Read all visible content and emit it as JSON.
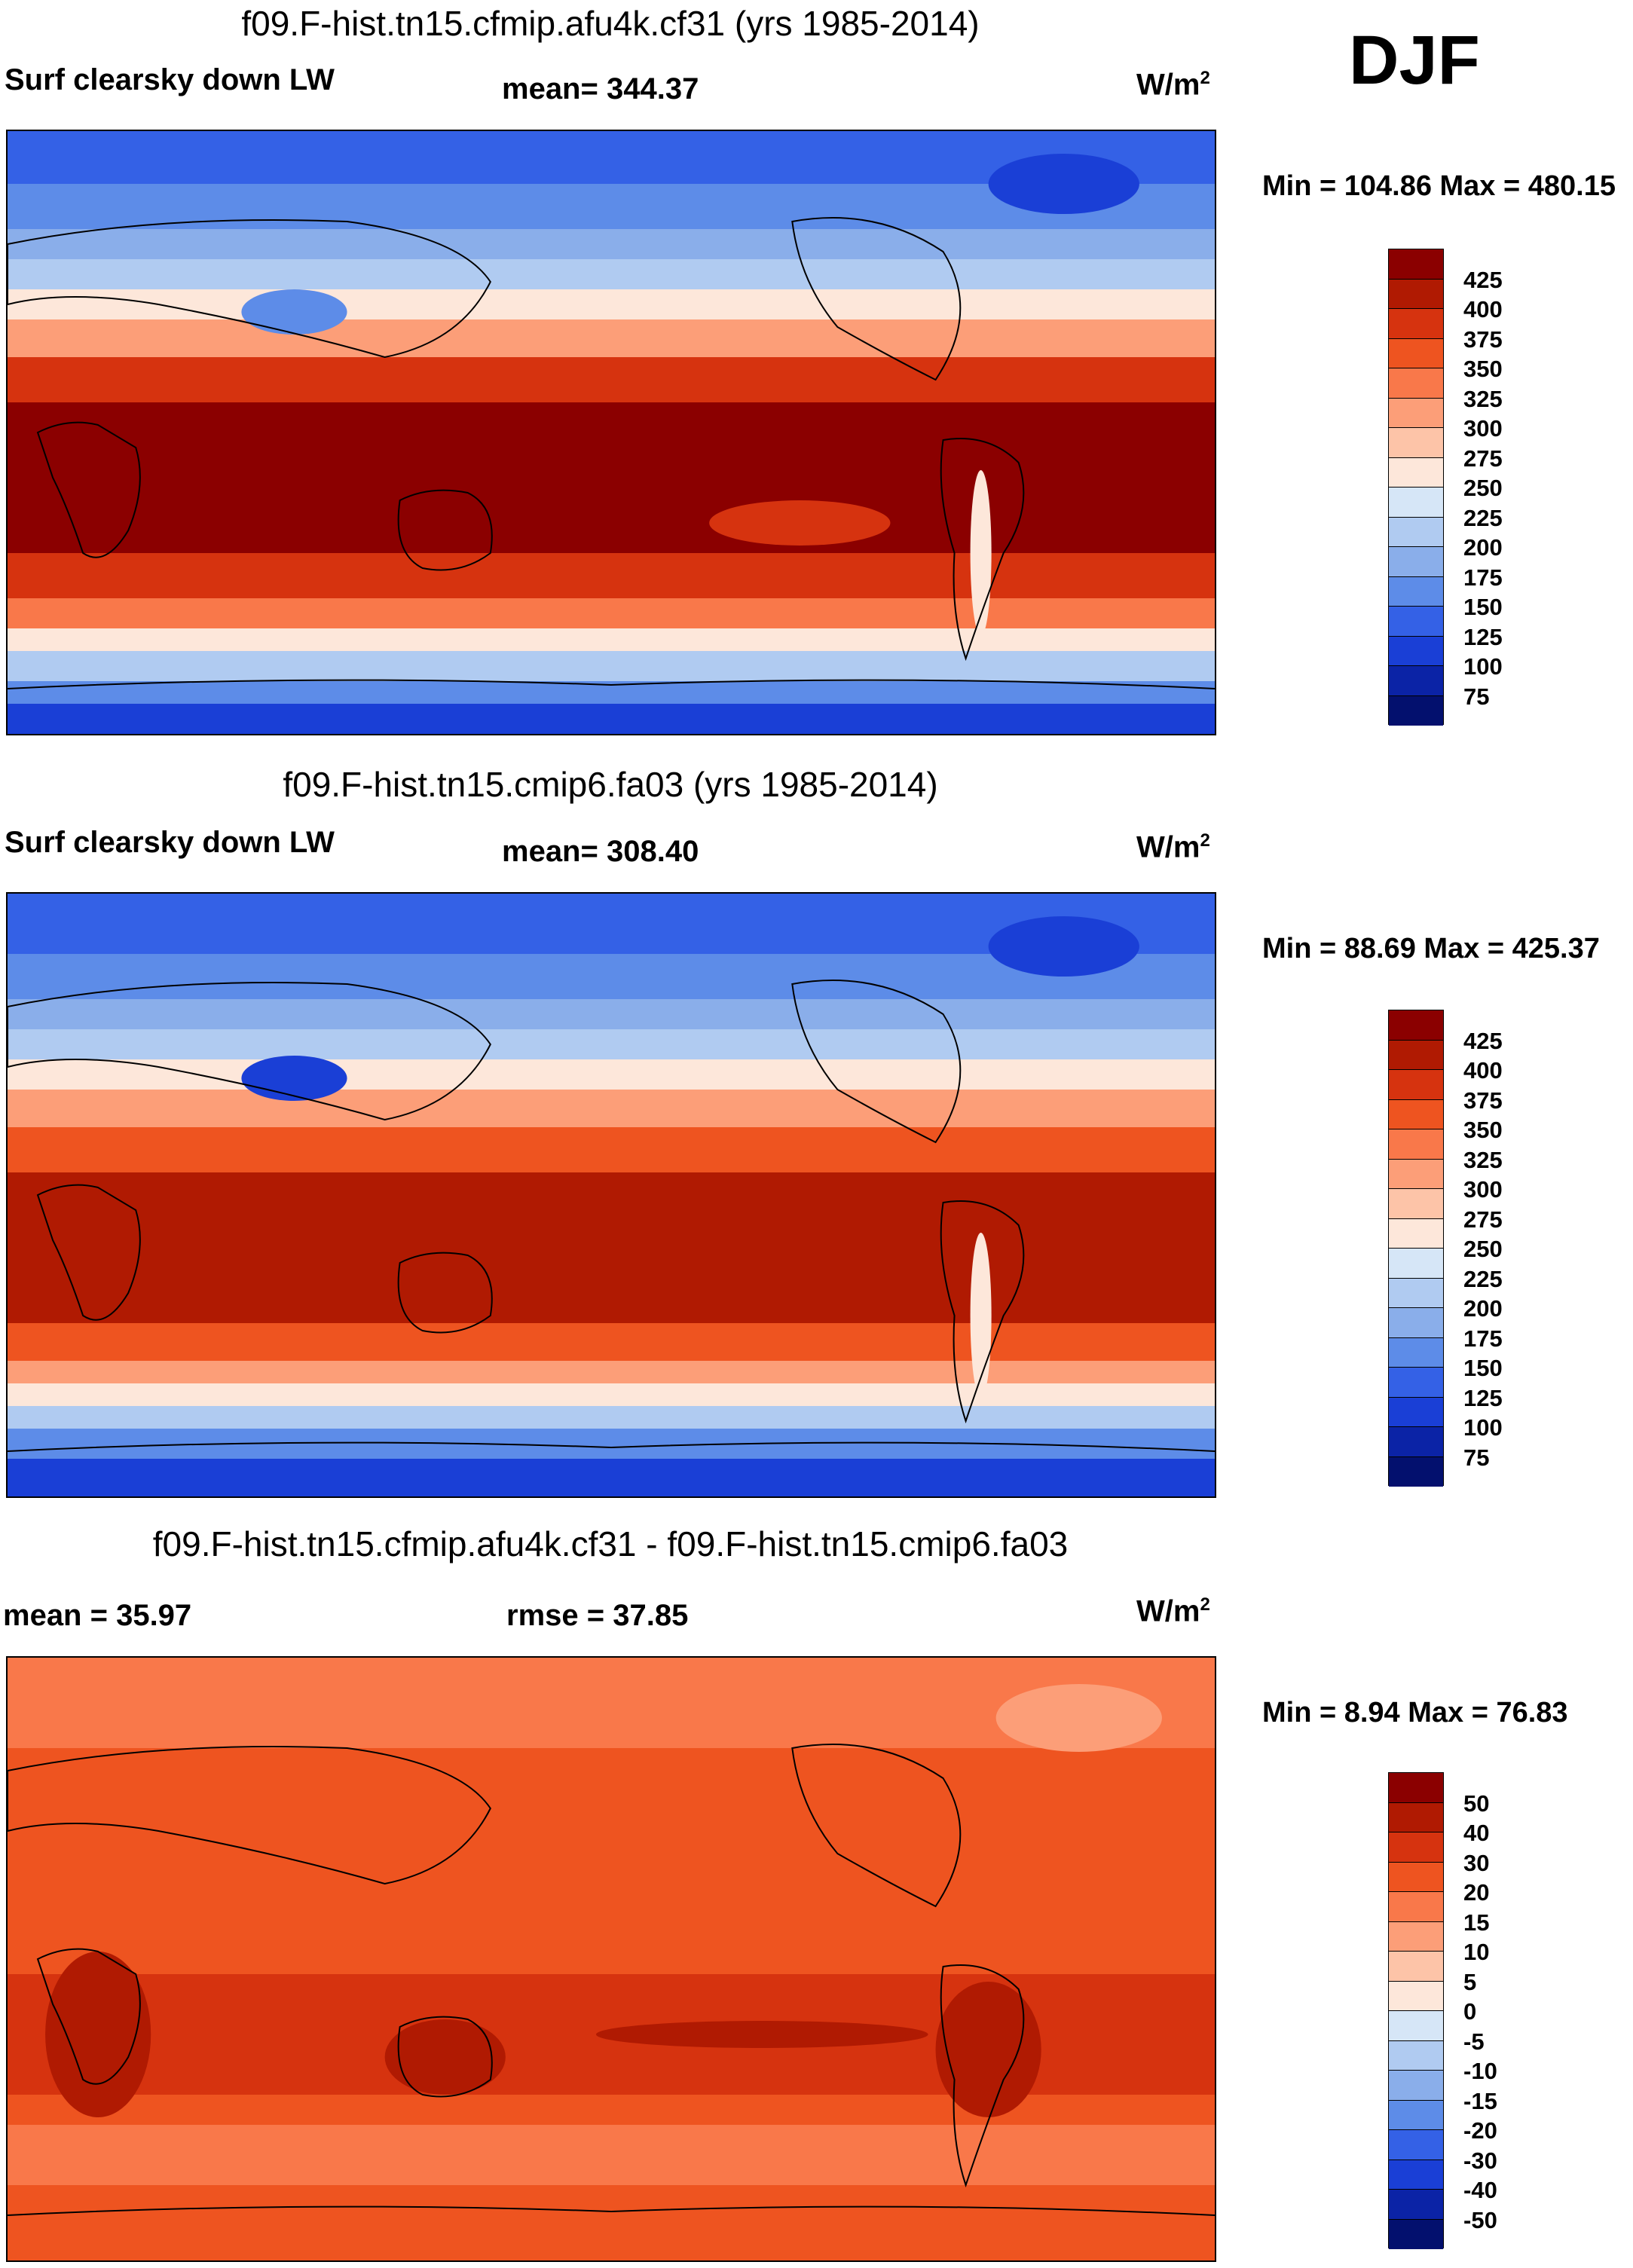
{
  "season": "DJF",
  "panels": [
    {
      "title": "f09.F-hist.tn15.cfmip.afu4k.cf31 (yrs 1985-2014)",
      "left_label": "Surf clearsky down LW",
      "center_label": "mean= 344.37",
      "units": "W/m",
      "units_sup": "2",
      "minmax": "Min = 104.86 Max = 480.15"
    },
    {
      "title": "f09.F-hist.tn15.cmip6.fa03 (yrs 1985-2014)",
      "left_label": "Surf clearsky down LW",
      "center_label": "mean= 308.40",
      "units": "W/m",
      "units_sup": "2",
      "minmax": "Min =  88.69 Max = 425.37"
    },
    {
      "title": "f09.F-hist.tn15.cfmip.afu4k.cf31 - f09.F-hist.tn15.cmip6.fa03",
      "left_label": "mean =  35.97",
      "center_label": "rmse =  37.85",
      "units": "W/m",
      "units_sup": "2",
      "minmax": "Min =   8.94 Max =  76.83"
    }
  ],
  "chart_data": [
    {
      "type": "heatmap",
      "title": "f09.F-hist.tn15.cfmip.afu4k.cf31 (yrs 1985-2014)",
      "variable": "Surf clearsky down LW",
      "season": "DJF",
      "units": "W/m2",
      "mean": 344.37,
      "min": 104.86,
      "max": 480.15,
      "colorbar_levels": [
        425,
        400,
        375,
        350,
        325,
        300,
        275,
        250,
        225,
        200,
        175,
        150,
        125,
        100,
        75
      ],
      "colorbar_colors": [
        "#8b0000",
        "#b01a02",
        "#d6330f",
        "#ee5420",
        "#f9784a",
        "#fc9e78",
        "#fdc4a8",
        "#fde7da",
        "#d6e6f7",
        "#b0cbf1",
        "#8aaeea",
        "#5d8ce8",
        "#3461e6",
        "#1a3fd6",
        "#0b23a6",
        "#03106e"
      ]
    },
    {
      "type": "heatmap",
      "title": "f09.F-hist.tn15.cmip6.fa03 (yrs 1985-2014)",
      "variable": "Surf clearsky down LW",
      "season": "DJF",
      "units": "W/m2",
      "mean": 308.4,
      "min": 88.69,
      "max": 425.37,
      "colorbar_levels": [
        425,
        400,
        375,
        350,
        325,
        300,
        275,
        250,
        225,
        200,
        175,
        150,
        125,
        100,
        75
      ],
      "colorbar_colors": [
        "#8b0000",
        "#b01a02",
        "#d6330f",
        "#ee5420",
        "#f9784a",
        "#fc9e78",
        "#fdc4a8",
        "#fde7da",
        "#d6e6f7",
        "#b0cbf1",
        "#8aaeea",
        "#5d8ce8",
        "#3461e6",
        "#1a3fd6",
        "#0b23a6",
        "#03106e"
      ]
    },
    {
      "type": "heatmap",
      "title": "f09.F-hist.tn15.cfmip.afu4k.cf31 - f09.F-hist.tn15.cmip6.fa03",
      "variable": "difference",
      "season": "DJF",
      "units": "W/m2",
      "mean": 35.97,
      "rmse": 37.85,
      "min": 8.94,
      "max": 76.83,
      "colorbar_levels": [
        50,
        40,
        30,
        20,
        15,
        10,
        5,
        0,
        -5,
        -10,
        -15,
        -20,
        -30,
        -40,
        -50
      ],
      "colorbar_colors": [
        "#8b0000",
        "#b01a02",
        "#d6330f",
        "#ee5420",
        "#f9784a",
        "#fc9e78",
        "#fdc4a8",
        "#fde7da",
        "#d6e6f7",
        "#b0cbf1",
        "#8aaeea",
        "#5d8ce8",
        "#3461e6",
        "#1a3fd6",
        "#0b23a6",
        "#03106e"
      ]
    }
  ]
}
